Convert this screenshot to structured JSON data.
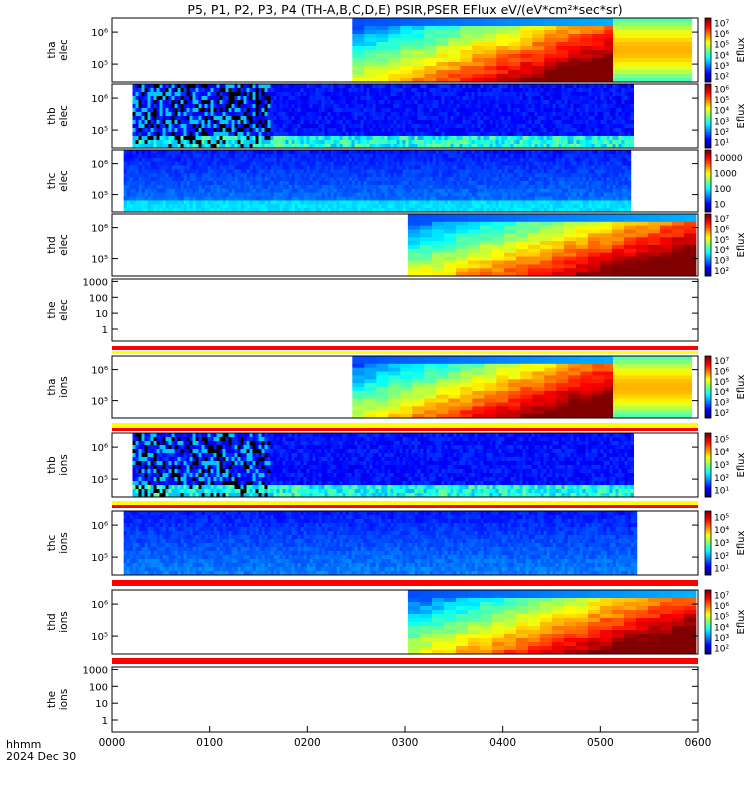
{
  "title": "P5, P1, P2, P3, P4 (TH-A,B,C,D,E) PSIR,PSER EFlux eV/(eV*cm²*sec*sr)",
  "footer": {
    "time_unit": "hhmm",
    "date": "2024 Dec 30"
  },
  "chart_data": {
    "type": "heatmap",
    "x_axis": {
      "range_hhmm": [
        "0000",
        "0600"
      ],
      "ticks": [
        "0000",
        "0100",
        "0200",
        "0300",
        "0400",
        "0500",
        "0600"
      ]
    },
    "panels": [
      {
        "id": "tha-elec",
        "label": [
          "tha",
          "elec"
        ],
        "kind": "spectrogram",
        "y_ticks": [
          "10⁵",
          "10⁶"
        ],
        "colorbar_label": "Eflux",
        "colorbar_ticks": [
          "10²",
          "10³",
          "10⁴",
          "10⁵",
          "10⁶",
          "10⁷"
        ],
        "data_start_hhmm": 0.41,
        "data_end_hhmm": 0.855,
        "tail_end_hhmm": 0.99,
        "style": "energetic",
        "bars": []
      },
      {
        "id": "thb-elec",
        "label": [
          "thb",
          "elec"
        ],
        "kind": "spectrogram",
        "y_ticks": [
          "10⁵",
          "10⁶"
        ],
        "colorbar_label": "Eflux",
        "colorbar_ticks": [
          "10¹",
          "10²",
          "10³",
          "10⁴",
          "10⁵",
          "10⁶"
        ],
        "data_start_hhmm": 0.035,
        "data_end_hhmm": 0.885,
        "style": "noisy",
        "bars": []
      },
      {
        "id": "thc-elec",
        "label": [
          "thc",
          "elec"
        ],
        "kind": "spectrogram",
        "y_ticks": [
          "10⁵",
          "10⁶"
        ],
        "colorbar_label": "",
        "colorbar_ticks": [
          "10",
          "100",
          "1000",
          "10000"
        ],
        "data_start_hhmm": 0.02,
        "data_end_hhmm": 0.885,
        "style": "quiet",
        "bars": []
      },
      {
        "id": "thd-elec",
        "label": [
          "thd",
          "elec"
        ],
        "kind": "spectrogram",
        "y_ticks": [
          "10⁵",
          "10⁶"
        ],
        "colorbar_label": "Eflux",
        "colorbar_ticks": [
          "10²",
          "10³",
          "10⁴",
          "10⁵",
          "10⁶",
          "10⁷"
        ],
        "data_start_hhmm": 0.505,
        "data_end_hhmm": 0.985,
        "style": "energetic",
        "bars": []
      },
      {
        "id": "the-elec",
        "label": [
          "the",
          "elec"
        ],
        "kind": "empty",
        "y_ticks": [
          "1",
          "10",
          "100",
          "1000"
        ],
        "colorbar_label": "",
        "colorbar_ticks": [],
        "bars": []
      },
      {
        "id": "tha-ions",
        "label": [
          "tha",
          "ions"
        ],
        "kind": "spectrogram",
        "y_ticks": [
          "10⁵",
          "10⁶"
        ],
        "colorbar_label": "Eflux",
        "colorbar_ticks": [
          "10²",
          "10³",
          "10⁴",
          "10⁵",
          "10⁶",
          "10⁷"
        ],
        "data_start_hhmm": 0.41,
        "data_end_hhmm": 0.855,
        "tail_end_hhmm": 0.99,
        "style": "energetic_ion",
        "bars": [
          "red",
          "yellow"
        ]
      },
      {
        "id": "thb-ions",
        "label": [
          "thb",
          "ions"
        ],
        "kind": "spectrogram",
        "y_ticks": [
          "10⁵",
          "10⁶"
        ],
        "colorbar_label": "Eflux",
        "colorbar_ticks": [
          "10¹",
          "10²",
          "10³",
          "10⁴",
          "10⁵"
        ],
        "data_start_hhmm": 0.035,
        "data_end_hhmm": 0.885,
        "style": "noisy",
        "bars": [
          "yellow",
          "red"
        ]
      },
      {
        "id": "thc-ions",
        "label": [
          "thc",
          "ions"
        ],
        "kind": "spectrogram",
        "y_ticks": [
          "10⁵",
          "10⁶"
        ],
        "colorbar_label": "Eflux",
        "colorbar_ticks": [
          "10¹",
          "10²",
          "10³",
          "10⁴",
          "10⁵"
        ],
        "data_start_hhmm": 0.02,
        "data_end_hhmm": 0.895,
        "style": "quiet_ion",
        "bars": [
          "yellow",
          "red"
        ]
      },
      {
        "id": "thd-ions",
        "label": [
          "thd",
          "ions"
        ],
        "kind": "spectrogram",
        "y_ticks": [
          "10⁵",
          "10⁶"
        ],
        "colorbar_label": "Eflux",
        "colorbar_ticks": [
          "10²",
          "10³",
          "10⁴",
          "10⁵",
          "10⁶",
          "10⁷"
        ],
        "data_start_hhmm": 0.505,
        "data_end_hhmm": 0.985,
        "style": "energetic",
        "bars": [
          "red"
        ]
      },
      {
        "id": "the-ions",
        "label": [
          "the",
          "ions"
        ],
        "kind": "empty",
        "y_ticks": [
          "1",
          "10",
          "100",
          "1000"
        ],
        "colorbar_label": "",
        "colorbar_ticks": [],
        "bars": [
          "red"
        ]
      }
    ]
  }
}
